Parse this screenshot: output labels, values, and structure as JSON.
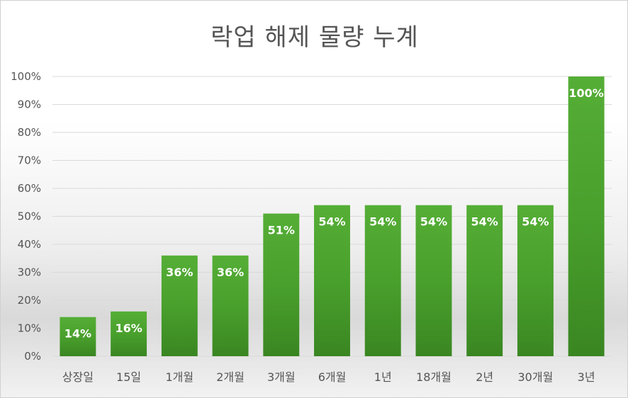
{
  "chart_data": {
    "type": "bar",
    "title": "락업 해제 물량 누계",
    "categories": [
      "상장일",
      "15일",
      "1개월",
      "2개월",
      "3개월",
      "6개월",
      "1년",
      "18개월",
      "2년",
      "30개월",
      "3년"
    ],
    "values": [
      14,
      16,
      36,
      36,
      51,
      54,
      54,
      54,
      54,
      54,
      100
    ],
    "data_labels": [
      "14%",
      "16%",
      "36%",
      "36%",
      "51%",
      "54%",
      "54%",
      "54%",
      "54%",
      "54%",
      "100%"
    ],
    "ylim": [
      0,
      100
    ],
    "yticks": [
      "0%",
      "10%",
      "20%",
      "30%",
      "40%",
      "50%",
      "60%",
      "70%",
      "80%",
      "90%",
      "100%"
    ],
    "xlabel": "",
    "ylabel": "",
    "grid": true,
    "legend": "none",
    "bar_color": "#4a9e2c"
  }
}
